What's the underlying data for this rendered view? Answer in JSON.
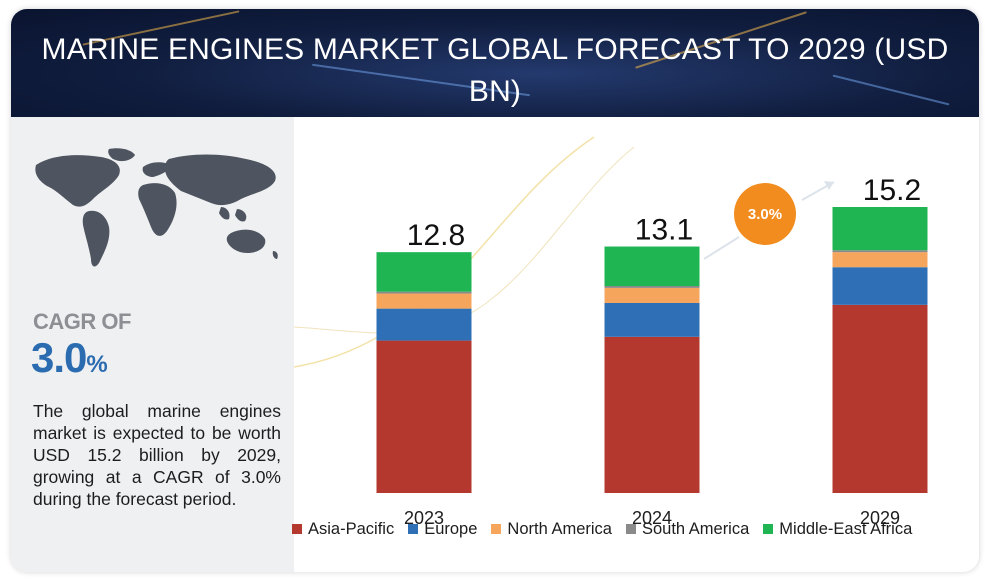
{
  "header": {
    "title": "MARINE ENGINES MARKET GLOBAL FORECAST TO 2029 (USD BN)"
  },
  "left_panel": {
    "cagr_label": "CAGR OF",
    "cagr_value": "3.0",
    "cagr_unit": "%",
    "summary": "The global marine engines market is expected to be worth USD 15.2 billion by 2029, growing at a CAGR of 3.0% during the forecast period."
  },
  "badge": {
    "text": "3.0%"
  },
  "colors": {
    "asia_pacific": "#b5382f",
    "europe": "#2f6fb6",
    "north_america": "#f6a55c",
    "south_america": "#8a8a8a",
    "middle_east_africa": "#1fb552",
    "badge": "#f28c1e",
    "banner": "#101d3e"
  },
  "chart_data": {
    "type": "bar",
    "stacked": true,
    "title": "MARINE ENGINES MARKET GLOBAL FORECAST TO 2029 (USD BN)",
    "xlabel": "",
    "ylabel": "",
    "categories": [
      "2023",
      "2024",
      "2029"
    ],
    "totals": [
      12.8,
      13.1,
      15.2
    ],
    "total_labels": [
      "12.8",
      "13.1",
      "15.2"
    ],
    "ylim": [
      0,
      15.2
    ],
    "grid": false,
    "legend_position": "bottom",
    "series": [
      {
        "name": "Asia-Pacific",
        "color": "#b5382f",
        "values": [
          8.1,
          8.3,
          10.0
        ]
      },
      {
        "name": "Europe",
        "color": "#2f6fb6",
        "values": [
          1.7,
          1.8,
          2.0
        ]
      },
      {
        "name": "North America",
        "color": "#f6a55c",
        "values": [
          0.8,
          0.8,
          0.8
        ]
      },
      {
        "name": "South America",
        "color": "#8a8a8a",
        "values": [
          0.1,
          0.1,
          0.1
        ]
      },
      {
        "name": "Middle-East Africa",
        "color": "#1fb552",
        "values": [
          2.1,
          2.1,
          2.3
        ]
      }
    ]
  }
}
